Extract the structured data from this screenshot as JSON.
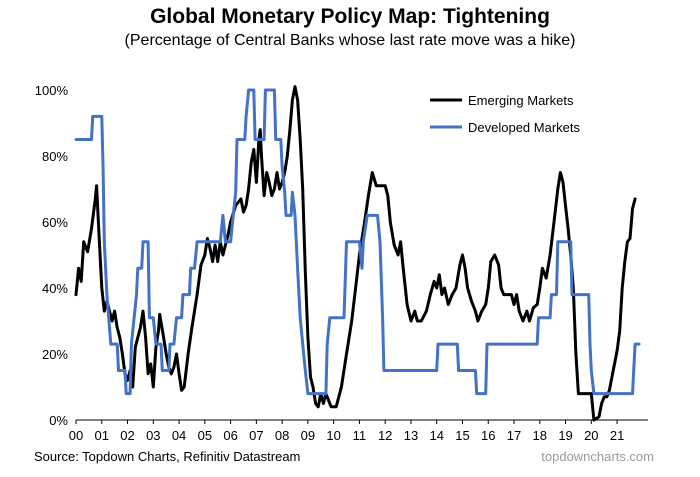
{
  "title": "Global Monetary Policy Map: Tightening",
  "subtitle": "(Percentage of Central Banks whose last rate move was a hike)",
  "source": "Source: Topdown Charts, Refinitiv Datastream",
  "brand": "topdowncharts.com",
  "colors": {
    "emerging": "#000000",
    "developed": "#4472C4",
    "axis": "#000000"
  },
  "chart_data": {
    "type": "line",
    "xlabel": "",
    "ylabel": "",
    "xlim": [
      2000,
      2022.2
    ],
    "ylim": [
      0,
      100
    ],
    "x_ticks": [
      {
        "label": "00",
        "x": 2000
      },
      {
        "label": "01",
        "x": 2001
      },
      {
        "label": "02",
        "x": 2002
      },
      {
        "label": "03",
        "x": 2003
      },
      {
        "label": "04",
        "x": 2004
      },
      {
        "label": "05",
        "x": 2005
      },
      {
        "label": "06",
        "x": 2006
      },
      {
        "label": "07",
        "x": 2007
      },
      {
        "label": "08",
        "x": 2008
      },
      {
        "label": "09",
        "x": 2009
      },
      {
        "label": "10",
        "x": 2010
      },
      {
        "label": "11",
        "x": 2011
      },
      {
        "label": "12",
        "x": 2012
      },
      {
        "label": "13",
        "x": 2013
      },
      {
        "label": "14",
        "x": 2014
      },
      {
        "label": "15",
        "x": 2015
      },
      {
        "label": "16",
        "x": 2016
      },
      {
        "label": "17",
        "x": 2017
      },
      {
        "label": "18",
        "x": 2018
      },
      {
        "label": "19",
        "x": 2019
      },
      {
        "label": "20",
        "x": 2020
      },
      {
        "label": "21",
        "x": 2021
      }
    ],
    "y_ticks": [
      {
        "label": "0%",
        "y": 0
      },
      {
        "label": "20%",
        "y": 20
      },
      {
        "label": "40%",
        "y": 40
      },
      {
        "label": "60%",
        "y": 60
      },
      {
        "label": "80%",
        "y": 80
      },
      {
        "label": "100%",
        "y": 100
      }
    ],
    "grid": false,
    "legend_position": "top-right",
    "series": [
      {
        "name": "Emerging Markets",
        "color": "#000000",
        "points": [
          [
            2000.0,
            38
          ],
          [
            2000.1,
            46
          ],
          [
            2000.2,
            42
          ],
          [
            2000.3,
            54
          ],
          [
            2000.45,
            51
          ],
          [
            2000.6,
            58
          ],
          [
            2000.75,
            67
          ],
          [
            2000.8,
            71
          ],
          [
            2000.9,
            55
          ],
          [
            2001.0,
            40
          ],
          [
            2001.1,
            33
          ],
          [
            2001.2,
            36
          ],
          [
            2001.3,
            33
          ],
          [
            2001.4,
            30
          ],
          [
            2001.5,
            33
          ],
          [
            2001.6,
            28
          ],
          [
            2001.7,
            25
          ],
          [
            2001.8,
            20
          ],
          [
            2001.9,
            14
          ],
          [
            2002.0,
            12
          ],
          [
            2002.1,
            15
          ],
          [
            2002.2,
            10
          ],
          [
            2002.3,
            22
          ],
          [
            2002.4,
            25
          ],
          [
            2002.5,
            28
          ],
          [
            2002.6,
            33
          ],
          [
            2002.7,
            25
          ],
          [
            2002.8,
            14
          ],
          [
            2002.9,
            17
          ],
          [
            2003.0,
            10
          ],
          [
            2003.1,
            22
          ],
          [
            2003.2,
            27
          ],
          [
            2003.25,
            32
          ],
          [
            2003.4,
            25
          ],
          [
            2003.5,
            20
          ],
          [
            2003.6,
            16
          ],
          [
            2003.7,
            14
          ],
          [
            2003.8,
            16
          ],
          [
            2003.9,
            20
          ],
          [
            2004.0,
            14
          ],
          [
            2004.1,
            9
          ],
          [
            2004.2,
            10
          ],
          [
            2004.35,
            20
          ],
          [
            2004.5,
            28
          ],
          [
            2004.7,
            38
          ],
          [
            2004.85,
            47
          ],
          [
            2005.0,
            50
          ],
          [
            2005.1,
            55
          ],
          [
            2005.2,
            52
          ],
          [
            2005.3,
            48
          ],
          [
            2005.4,
            53
          ],
          [
            2005.5,
            48
          ],
          [
            2005.6,
            54
          ],
          [
            2005.7,
            50
          ],
          [
            2005.8,
            53
          ],
          [
            2005.9,
            56
          ],
          [
            2006.0,
            60
          ],
          [
            2006.2,
            65
          ],
          [
            2006.4,
            67
          ],
          [
            2006.5,
            63
          ],
          [
            2006.6,
            65
          ],
          [
            2006.7,
            70
          ],
          [
            2006.8,
            78
          ],
          [
            2006.9,
            82
          ],
          [
            2007.0,
            72
          ],
          [
            2007.1,
            85
          ],
          [
            2007.15,
            88
          ],
          [
            2007.2,
            80
          ],
          [
            2007.3,
            68
          ],
          [
            2007.4,
            75
          ],
          [
            2007.5,
            72
          ],
          [
            2007.6,
            68
          ],
          [
            2007.7,
            70
          ],
          [
            2007.8,
            75
          ],
          [
            2007.9,
            70
          ],
          [
            2008.0,
            72
          ],
          [
            2008.1,
            75
          ],
          [
            2008.2,
            80
          ],
          [
            2008.3,
            88
          ],
          [
            2008.4,
            97
          ],
          [
            2008.5,
            101
          ],
          [
            2008.6,
            97
          ],
          [
            2008.7,
            85
          ],
          [
            2008.8,
            70
          ],
          [
            2008.9,
            45
          ],
          [
            2009.0,
            25
          ],
          [
            2009.1,
            13
          ],
          [
            2009.2,
            10
          ],
          [
            2009.3,
            5
          ],
          [
            2009.4,
            4
          ],
          [
            2009.5,
            8
          ],
          [
            2009.6,
            5
          ],
          [
            2009.7,
            8
          ],
          [
            2009.8,
            6
          ],
          [
            2009.9,
            4
          ],
          [
            2010.0,
            4
          ],
          [
            2010.1,
            4
          ],
          [
            2010.3,
            10
          ],
          [
            2010.5,
            20
          ],
          [
            2010.7,
            30
          ],
          [
            2010.85,
            40
          ],
          [
            2011.0,
            50
          ],
          [
            2011.2,
            60
          ],
          [
            2011.35,
            68
          ],
          [
            2011.5,
            75
          ],
          [
            2011.65,
            71
          ],
          [
            2011.8,
            71
          ],
          [
            2012.0,
            71
          ],
          [
            2012.1,
            68
          ],
          [
            2012.2,
            60
          ],
          [
            2012.35,
            53
          ],
          [
            2012.5,
            50
          ],
          [
            2012.6,
            54
          ],
          [
            2012.7,
            46
          ],
          [
            2012.85,
            35
          ],
          [
            2013.0,
            30
          ],
          [
            2013.15,
            33
          ],
          [
            2013.25,
            30
          ],
          [
            2013.4,
            30
          ],
          [
            2013.6,
            33
          ],
          [
            2013.75,
            38
          ],
          [
            2013.9,
            42
          ],
          [
            2014.0,
            40
          ],
          [
            2014.1,
            44
          ],
          [
            2014.2,
            38
          ],
          [
            2014.3,
            40
          ],
          [
            2014.45,
            35
          ],
          [
            2014.6,
            38
          ],
          [
            2014.75,
            40
          ],
          [
            2014.9,
            47
          ],
          [
            2015.0,
            50
          ],
          [
            2015.1,
            46
          ],
          [
            2015.2,
            40
          ],
          [
            2015.35,
            36
          ],
          [
            2015.5,
            33
          ],
          [
            2015.6,
            30
          ],
          [
            2015.75,
            33
          ],
          [
            2015.9,
            35
          ],
          [
            2016.0,
            40
          ],
          [
            2016.1,
            48
          ],
          [
            2016.25,
            50
          ],
          [
            2016.4,
            47
          ],
          [
            2016.5,
            40
          ],
          [
            2016.6,
            38
          ],
          [
            2016.75,
            38
          ],
          [
            2016.9,
            38
          ],
          [
            2017.0,
            35
          ],
          [
            2017.1,
            38
          ],
          [
            2017.2,
            33
          ],
          [
            2017.35,
            30
          ],
          [
            2017.5,
            33
          ],
          [
            2017.6,
            30
          ],
          [
            2017.75,
            34
          ],
          [
            2017.9,
            35
          ],
          [
            2018.0,
            40
          ],
          [
            2018.1,
            46
          ],
          [
            2018.25,
            43
          ],
          [
            2018.4,
            50
          ],
          [
            2018.55,
            60
          ],
          [
            2018.7,
            70
          ],
          [
            2018.8,
            75
          ],
          [
            2018.9,
            72
          ],
          [
            2019.0,
            65
          ],
          [
            2019.1,
            58
          ],
          [
            2019.2,
            50
          ],
          [
            2019.3,
            40
          ],
          [
            2019.4,
            20
          ],
          [
            2019.5,
            8
          ],
          [
            2019.6,
            8
          ],
          [
            2019.8,
            8
          ],
          [
            2019.9,
            8
          ],
          [
            2020.0,
            8
          ],
          [
            2020.1,
            0
          ],
          [
            2020.3,
            1
          ],
          [
            2020.4,
            5
          ],
          [
            2020.5,
            7
          ],
          [
            2020.6,
            7
          ],
          [
            2020.7,
            9
          ],
          [
            2020.8,
            13
          ],
          [
            2020.9,
            17
          ],
          [
            2021.0,
            21
          ],
          [
            2021.1,
            27
          ],
          [
            2021.2,
            40
          ],
          [
            2021.3,
            48
          ],
          [
            2021.4,
            54
          ],
          [
            2021.5,
            55
          ],
          [
            2021.6,
            64
          ],
          [
            2021.7,
            67
          ]
        ]
      },
      {
        "name": "Developed Markets",
        "color": "#4472C4",
        "points": [
          [
            2000.0,
            85
          ],
          [
            2000.6,
            85
          ],
          [
            2000.65,
            92
          ],
          [
            2001.0,
            92
          ],
          [
            2001.05,
            76
          ],
          [
            2001.1,
            54
          ],
          [
            2001.2,
            38
          ],
          [
            2001.35,
            23
          ],
          [
            2001.6,
            23
          ],
          [
            2001.65,
            15
          ],
          [
            2001.9,
            15
          ],
          [
            2001.95,
            8
          ],
          [
            2002.1,
            8
          ],
          [
            2002.15,
            23
          ],
          [
            2002.35,
            38
          ],
          [
            2002.4,
            46
          ],
          [
            2002.55,
            46
          ],
          [
            2002.6,
            54
          ],
          [
            2002.8,
            54
          ],
          [
            2002.85,
            31
          ],
          [
            2003.0,
            31
          ],
          [
            2003.1,
            23
          ],
          [
            2003.3,
            23
          ],
          [
            2003.35,
            15
          ],
          [
            2003.6,
            15
          ],
          [
            2003.65,
            23
          ],
          [
            2003.8,
            23
          ],
          [
            2003.9,
            31
          ],
          [
            2004.1,
            31
          ],
          [
            2004.15,
            38
          ],
          [
            2004.4,
            38
          ],
          [
            2004.45,
            46
          ],
          [
            2004.6,
            46
          ],
          [
            2004.7,
            54
          ],
          [
            2005.2,
            54
          ],
          [
            2005.3,
            54
          ],
          [
            2005.6,
            54
          ],
          [
            2005.7,
            62
          ],
          [
            2005.8,
            54
          ],
          [
            2006.0,
            54
          ],
          [
            2006.1,
            62
          ],
          [
            2006.2,
            69
          ],
          [
            2006.25,
            85
          ],
          [
            2006.55,
            85
          ],
          [
            2006.6,
            92
          ],
          [
            2006.7,
            100
          ],
          [
            2006.9,
            100
          ],
          [
            2006.95,
            85
          ],
          [
            2007.3,
            85
          ],
          [
            2007.35,
            100
          ],
          [
            2007.7,
            100
          ],
          [
            2007.75,
            85
          ],
          [
            2007.95,
            85
          ],
          [
            2008.0,
            77
          ],
          [
            2008.1,
            69
          ],
          [
            2008.15,
            62
          ],
          [
            2008.35,
            62
          ],
          [
            2008.4,
            69
          ],
          [
            2008.5,
            62
          ],
          [
            2008.6,
            46
          ],
          [
            2008.7,
            31
          ],
          [
            2008.8,
            23
          ],
          [
            2008.9,
            15
          ],
          [
            2009.0,
            8
          ],
          [
            2009.7,
            8
          ],
          [
            2009.75,
            23
          ],
          [
            2009.85,
            31
          ],
          [
            2010.4,
            31
          ],
          [
            2010.5,
            54
          ],
          [
            2011.0,
            54
          ],
          [
            2011.1,
            46
          ],
          [
            2011.15,
            54
          ],
          [
            2011.3,
            62
          ],
          [
            2011.7,
            62
          ],
          [
            2011.8,
            54
          ],
          [
            2011.9,
            31
          ],
          [
            2011.95,
            15
          ],
          [
            2014.0,
            15
          ],
          [
            2014.05,
            23
          ],
          [
            2014.8,
            23
          ],
          [
            2014.85,
            15
          ],
          [
            2015.5,
            15
          ],
          [
            2015.55,
            8
          ],
          [
            2015.9,
            8
          ],
          [
            2015.95,
            23
          ],
          [
            2017.9,
            23
          ],
          [
            2017.95,
            31
          ],
          [
            2018.4,
            31
          ],
          [
            2018.45,
            38
          ],
          [
            2018.65,
            38
          ],
          [
            2018.7,
            54
          ],
          [
            2019.2,
            54
          ],
          [
            2019.25,
            38
          ],
          [
            2019.9,
            38
          ],
          [
            2019.95,
            23
          ],
          [
            2020.0,
            15
          ],
          [
            2020.1,
            8
          ],
          [
            2021.6,
            8
          ],
          [
            2021.7,
            23
          ],
          [
            2021.85,
            23
          ]
        ]
      }
    ]
  }
}
